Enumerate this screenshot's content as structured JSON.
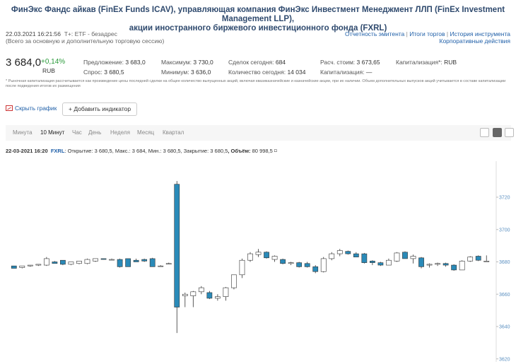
{
  "header": {
    "title_line1": "ФинЭкс Фандс айкав (FinEx Funds ICAV), управляющая компания ФинЭкс Инвестмент Менеджмент ЛЛП (FinEx Investment Management LLP),",
    "title_line2": "акции иностранного биржевого инвестиционного фонда (FXRL)",
    "timestamp": "22.03.2021 16:21:56",
    "board": "T+: ETF - безадрес",
    "session_note": "(Всего за основную и дополнительную торговую сессию)",
    "links": [
      "Отчетность эмитента",
      "Итоги торгов",
      "История инструмента"
    ],
    "link_corporate": "Корпоративные действия"
  },
  "quote": {
    "price": "3 684,0",
    "change": "+0,14%",
    "currency": "RUB",
    "offer_label": "Предложение:",
    "offer": "3 683,0",
    "bid_label": "Спрос:",
    "bid": "3 680,5",
    "max_label": "Максимум:",
    "max": "3 730,0",
    "min_label": "Минимум:",
    "min": "3 636,0",
    "deals_label": "Сделок сегодня:",
    "deals": "684",
    "qty_label": "Количество сегодня:",
    "qty": "14 034",
    "calc_label": "Расч. стоим:",
    "calc": "3 673,65",
    "cap1_label": "Капитализация*:",
    "cap1": "RUB",
    "cap2_label": "Капитализация:",
    "cap2": "—"
  },
  "footnote": "* Рыночная капитализация рассчитывается как произведение цены последней сделки на общее количество выпущенных акций, включая квазиказначейские и казначейские акции, при их наличии. Объем дополнительных выпусков акций учитывается в составе капитализации после подведения итогов их размещения",
  "controls": {
    "hide_chart": "Скрыть график",
    "add_indicator": "+ Добавить индикатор",
    "tabs": [
      "Минута",
      "10 Минут",
      "Час",
      "День",
      "Неделя",
      "Месяц",
      "Квартал"
    ],
    "active_tab": "10 Минут"
  },
  "candle_info": {
    "datetime": "22-03-2021 16:20",
    "ticker": "FXRL",
    "open_label": ": Открытие:",
    "open": "3 680,5",
    "high_label": ", Макс.:",
    "high": "3 684",
    "low_label": ", Мин.:",
    "low": "3 680,5",
    "close_label": ", Закрытие:",
    "close": "3 680,5",
    "volume_label": ", Объём:",
    "volume": "80 998,5 ⌑"
  },
  "colors": {
    "up": "#ffffff",
    "down": "#2a8ab8",
    "axis_label": "#5a8fc0",
    "grid": "#e8e8e8"
  },
  "chart_data": {
    "type": "candlestick",
    "y_ticks": [
      3620,
      3640,
      3660,
      3680,
      3700,
      3720
    ],
    "ylim": [
      3618,
      3738
    ],
    "ohlc": [
      {
        "o": 3677.5,
        "h": 3677.5,
        "l": 3676.0,
        "c": 3676.0
      },
      {
        "o": 3676.5,
        "h": 3677.5,
        "l": 3676.0,
        "c": 3677.5
      },
      {
        "o": 3677.5,
        "h": 3678.0,
        "l": 3677.0,
        "c": 3678.0
      },
      {
        "o": 3678.0,
        "h": 3678.5,
        "l": 3677.5,
        "c": 3678.5
      },
      {
        "o": 3678.0,
        "h": 3683.0,
        "l": 3677.5,
        "c": 3682.0
      },
      {
        "o": 3680.0,
        "h": 3680.5,
        "l": 3679.0,
        "c": 3679.0
      },
      {
        "o": 3681.0,
        "h": 3681.0,
        "l": 3678.0,
        "c": 3678.5
      },
      {
        "o": 3678.5,
        "h": 3680.0,
        "l": 3678.0,
        "c": 3680.0
      },
      {
        "o": 3679.0,
        "h": 3680.5,
        "l": 3678.5,
        "c": 3680.5
      },
      {
        "o": 3679.0,
        "h": 3682.0,
        "l": 3678.5,
        "c": 3681.5
      },
      {
        "o": 3680.5,
        "h": 3682.0,
        "l": 3680.0,
        "c": 3682.0
      },
      {
        "o": 3682.0,
        "h": 3682.0,
        "l": 3681.5,
        "c": 3681.5
      },
      {
        "o": 3681.5,
        "h": 3682.0,
        "l": 3681.0,
        "c": 3681.5
      },
      {
        "o": 3681.5,
        "h": 3682.0,
        "l": 3676.5,
        "c": 3677.0
      },
      {
        "o": 3682.0,
        "h": 3682.0,
        "l": 3677.0,
        "c": 3677.0
      },
      {
        "o": 3681.0,
        "h": 3682.0,
        "l": 3680.0,
        "c": 3680.0
      },
      {
        "o": 3681.5,
        "h": 3682.0,
        "l": 3680.0,
        "c": 3680.5
      },
      {
        "o": 3682.0,
        "h": 3682.5,
        "l": 3677.0,
        "c": 3677.0
      },
      {
        "o": 3677.5,
        "h": 3678.0,
        "l": 3677.0,
        "c": 3677.5
      },
      {
        "o": 3679.0,
        "h": 3679.5,
        "l": 3678.5,
        "c": 3679.0
      },
      {
        "o": 3728.0,
        "h": 3730.0,
        "l": 3636.0,
        "c": 3652.0
      },
      {
        "o": 3659.0,
        "h": 3661.0,
        "l": 3652.0,
        "c": 3660.0
      },
      {
        "o": 3659.0,
        "h": 3662.0,
        "l": 3652.0,
        "c": 3661.5
      },
      {
        "o": 3661.5,
        "h": 3665.0,
        "l": 3660.0,
        "c": 3664.0
      },
      {
        "o": 3661.0,
        "h": 3662.0,
        "l": 3657.0,
        "c": 3657.5
      },
      {
        "o": 3657.5,
        "h": 3660.0,
        "l": 3656.0,
        "c": 3658.5
      },
      {
        "o": 3658.5,
        "h": 3664.5,
        "l": 3656.0,
        "c": 3664.0
      },
      {
        "o": 3664.0,
        "h": 3672.0,
        "l": 3663.0,
        "c": 3672.0
      },
      {
        "o": 3672.0,
        "h": 3682.0,
        "l": 3670.0,
        "c": 3681.0
      },
      {
        "o": 3681.0,
        "h": 3686.0,
        "l": 3680.0,
        "c": 3685.0
      },
      {
        "o": 3684.5,
        "h": 3688.0,
        "l": 3683.0,
        "c": 3686.0
      },
      {
        "o": 3686.0,
        "h": 3686.5,
        "l": 3682.0,
        "c": 3682.5
      },
      {
        "o": 3681.5,
        "h": 3684.0,
        "l": 3680.0,
        "c": 3683.5
      },
      {
        "o": 3681.5,
        "h": 3682.0,
        "l": 3678.5,
        "c": 3679.0
      },
      {
        "o": 3679.0,
        "h": 3680.0,
        "l": 3678.0,
        "c": 3679.5
      },
      {
        "o": 3679.5,
        "h": 3680.0,
        "l": 3676.5,
        "c": 3677.0
      },
      {
        "o": 3679.0,
        "h": 3680.0,
        "l": 3676.5,
        "c": 3677.0
      },
      {
        "o": 3677.0,
        "h": 3678.0,
        "l": 3673.0,
        "c": 3674.0
      },
      {
        "o": 3674.0,
        "h": 3683.0,
        "l": 3673.5,
        "c": 3682.0
      },
      {
        "o": 3682.0,
        "h": 3686.0,
        "l": 3681.0,
        "c": 3685.0
      },
      {
        "o": 3685.0,
        "h": 3688.0,
        "l": 3683.5,
        "c": 3687.0
      },
      {
        "o": 3686.5,
        "h": 3687.0,
        "l": 3684.5,
        "c": 3685.0
      },
      {
        "o": 3685.0,
        "h": 3686.0,
        "l": 3683.0,
        "c": 3683.0
      },
      {
        "o": 3685.0,
        "h": 3685.5,
        "l": 3679.0,
        "c": 3679.5
      },
      {
        "o": 3680.5,
        "h": 3681.0,
        "l": 3678.0,
        "c": 3679.5
      },
      {
        "o": 3679.5,
        "h": 3680.0,
        "l": 3677.5,
        "c": 3678.0
      },
      {
        "o": 3678.0,
        "h": 3682.0,
        "l": 3678.0,
        "c": 3681.0
      },
      {
        "o": 3680.5,
        "h": 3686.0,
        "l": 3680.0,
        "c": 3685.5
      },
      {
        "o": 3686.0,
        "h": 3686.5,
        "l": 3682.0,
        "c": 3682.0
      },
      {
        "o": 3682.0,
        "h": 3684.5,
        "l": 3679.0,
        "c": 3683.5
      },
      {
        "o": 3682.5,
        "h": 3683.0,
        "l": 3676.0,
        "c": 3677.0
      },
      {
        "o": 3678.0,
        "h": 3679.0,
        "l": 3676.5,
        "c": 3678.5
      },
      {
        "o": 3678.5,
        "h": 3679.5,
        "l": 3677.5,
        "c": 3679.0
      },
      {
        "o": 3679.0,
        "h": 3679.5,
        "l": 3677.0,
        "c": 3678.0
      },
      {
        "o": 3678.0,
        "h": 3678.5,
        "l": 3674.5,
        "c": 3675.0
      },
      {
        "o": 3675.0,
        "h": 3681.0,
        "l": 3675.0,
        "c": 3680.5
      },
      {
        "o": 3680.5,
        "h": 3683.5,
        "l": 3680.0,
        "c": 3683.0
      },
      {
        "o": 3683.5,
        "h": 3684.0,
        "l": 3680.5,
        "c": 3681.0
      },
      {
        "o": 3680.5,
        "h": 3684.0,
        "l": 3680.5,
        "c": 3680.5
      }
    ]
  }
}
